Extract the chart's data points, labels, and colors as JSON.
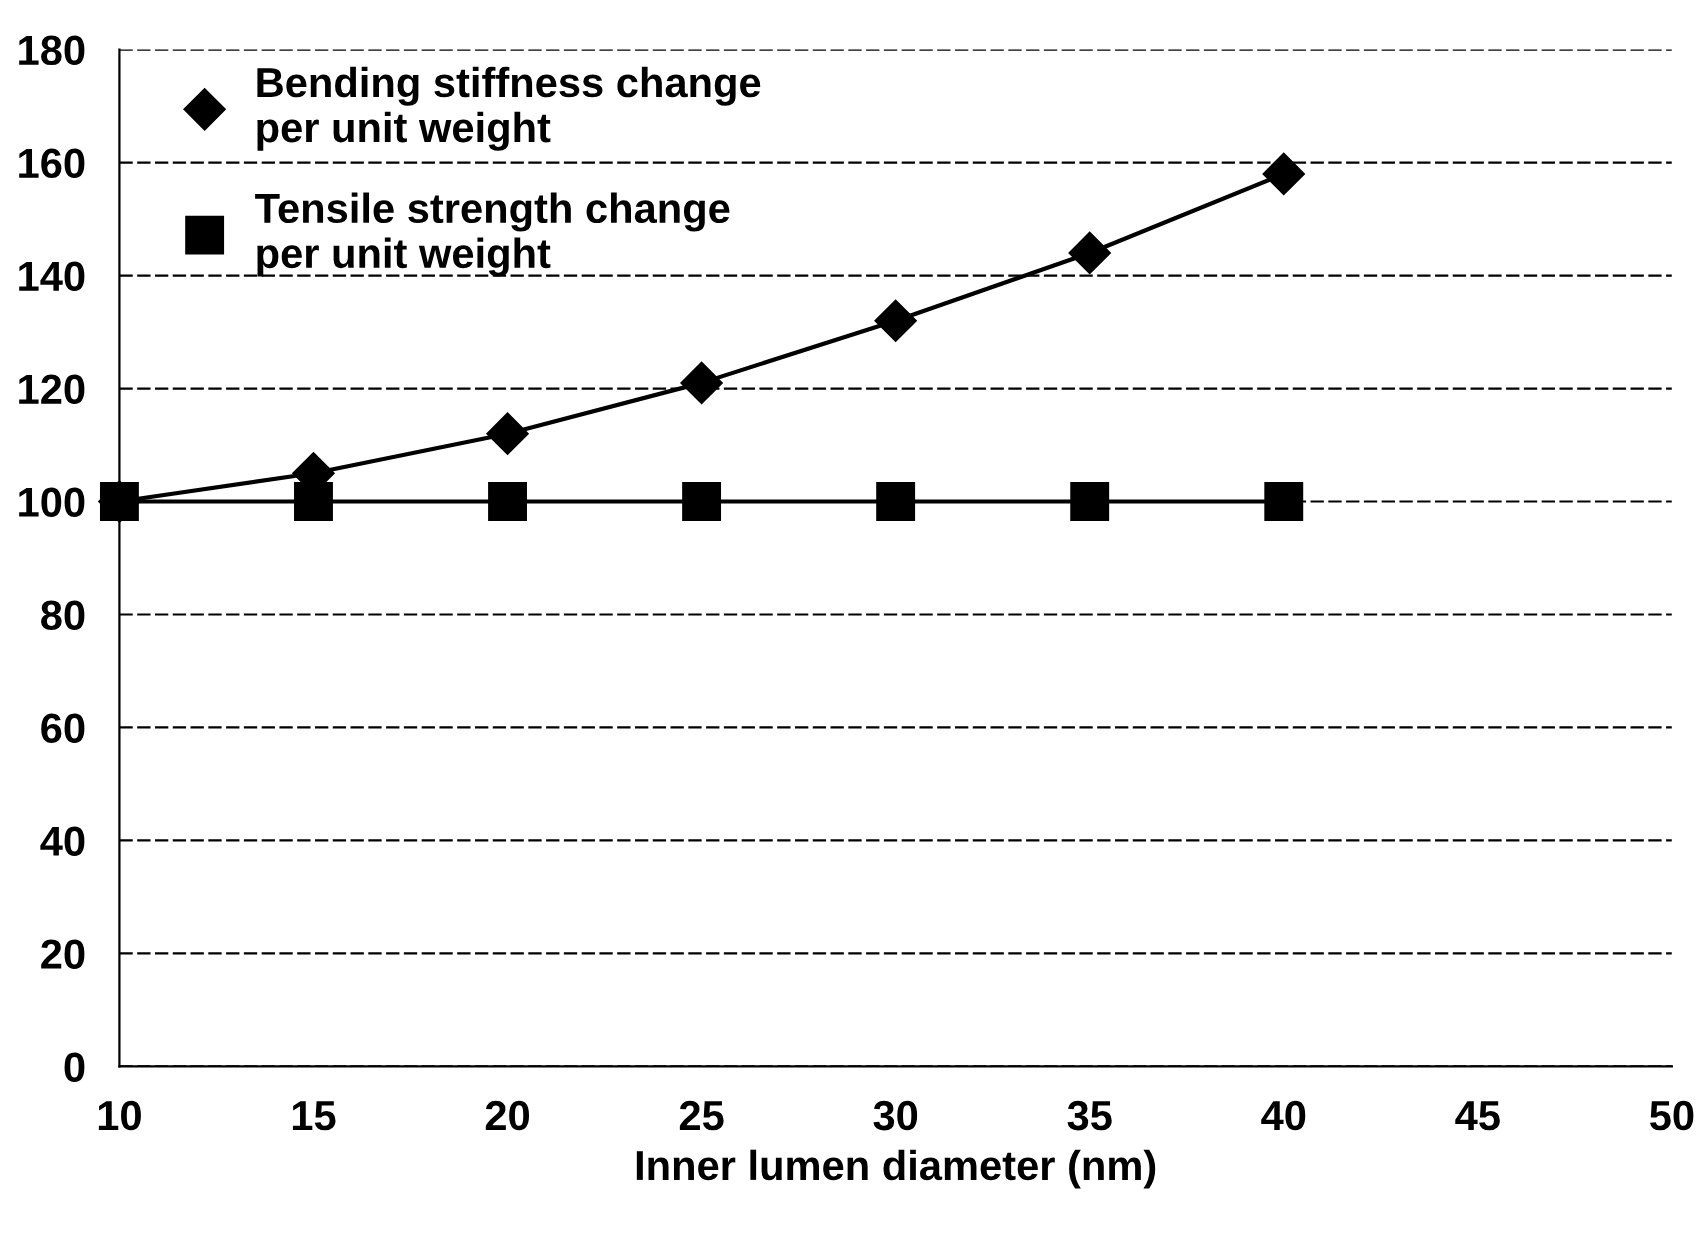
{
  "chart_data": {
    "type": "line",
    "xlabel": "Inner lumen diameter (nm)",
    "x": [
      10,
      15,
      20,
      25,
      30,
      35,
      40
    ],
    "series": [
      {
        "name": "Bending stiffness change\nper unit weight",
        "color": "#000000",
        "marker": "diamond",
        "values": [
          100,
          105,
          112,
          121,
          132,
          144,
          158
        ]
      },
      {
        "name": "Tensile strength change\nper unit weight",
        "color": "#000000",
        "marker": "square",
        "values": [
          100,
          100,
          100,
          100,
          100,
          100,
          100
        ]
      }
    ],
    "xlim": [
      10,
      50
    ],
    "xticks": [
      10,
      15,
      20,
      25,
      30,
      35,
      40,
      45,
      50
    ],
    "ylim": [
      0,
      180
    ],
    "yticks": [
      0,
      20,
      40,
      60,
      80,
      100,
      120,
      140,
      160,
      180
    ],
    "grid": "y",
    "legend": "top left",
    "line_style": "solid"
  }
}
